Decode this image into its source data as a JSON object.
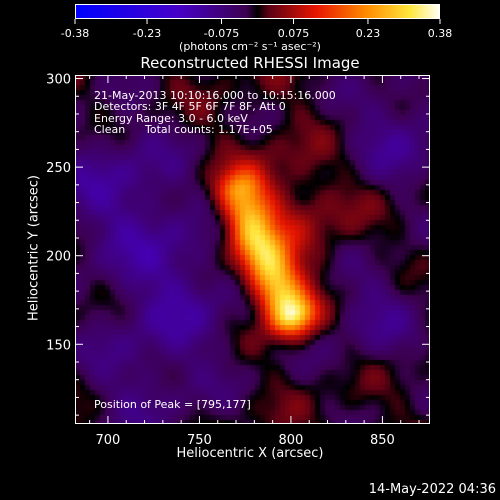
{
  "colorbar": {
    "tick_labels": [
      "-0.38",
      "-0.23",
      "-0.075",
      "0.075",
      "0.23",
      "0.38"
    ],
    "tick_values": [
      -0.38,
      -0.23,
      -0.075,
      0.075,
      0.23,
      0.38
    ],
    "units_label": "(photons cm⁻² s⁻¹ asec⁻²)"
  },
  "chart_data": {
    "type": "heatmap",
    "title": "Reconstructed RHESSI Image",
    "xlabel": "Heliocentric X (arcsec)",
    "ylabel": "Heliocentric Y (arcsec)",
    "xlim": [
      682,
      876
    ],
    "ylim": [
      105,
      302
    ],
    "x_ticks": [
      700,
      750,
      800,
      850
    ],
    "y_ticks": [
      150,
      200,
      250,
      300
    ],
    "x_tick_labels": [
      "700",
      "750",
      "800",
      "850"
    ],
    "y_tick_labels": [
      "150",
      "200",
      "250",
      "300"
    ],
    "peak": [
      795,
      177
    ],
    "color_range": [
      -0.38,
      0.38
    ]
  },
  "annotations": {
    "time_range": "21-May-2013 10:10:16.000 to 10:15:16.000",
    "detectors": "Detectors: 3F 4F 5F 6F 7F 8F, Att 0",
    "energy": "Energy Range: 3.0 - 6.0 keV",
    "clean": "Clean",
    "total_counts": "Total counts: 1.17E+05",
    "peak_position": "Position of Peak = [795,177]"
  },
  "timestamp": "14-May-2022 04:36"
}
